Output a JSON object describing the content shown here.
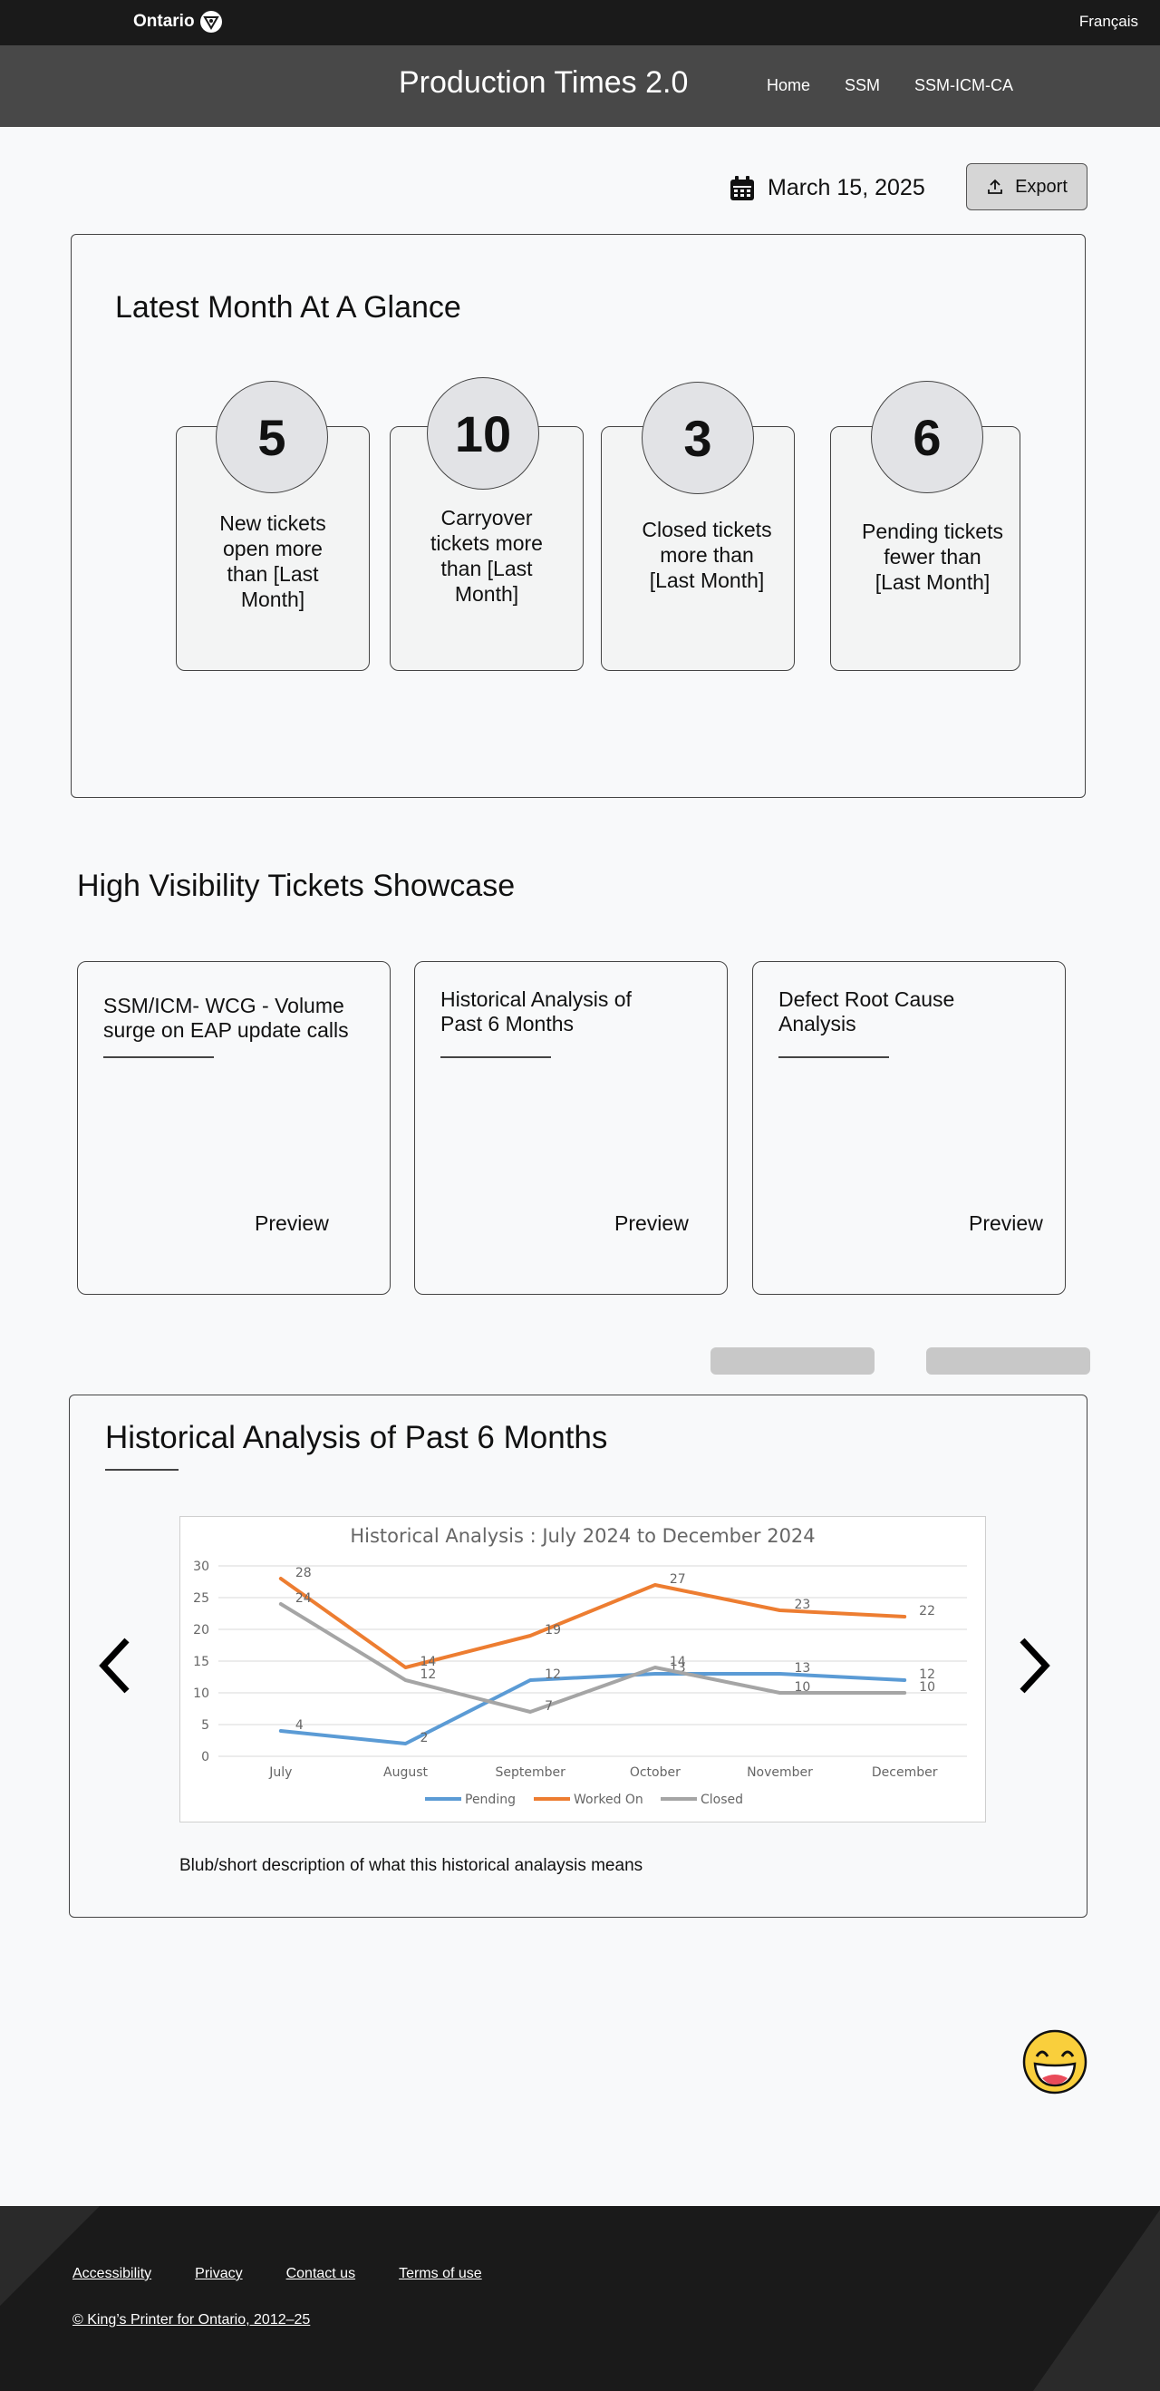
{
  "topbar": {
    "brand": "Ontario",
    "language": "Français"
  },
  "header": {
    "title": "Production Times 2.0",
    "nav": [
      "Home",
      "SSM",
      "SSM-ICM-CA"
    ]
  },
  "toolbar": {
    "date": "March 15, 2025",
    "export_label": "Export"
  },
  "glance": {
    "title": "Latest Month At A Glance",
    "stats": [
      {
        "value": "5",
        "lines": [
          "New tickets",
          "open more",
          "than  [Last",
          "Month]"
        ]
      },
      {
        "value": "10",
        "lines": [
          "Carryover",
          "tickets more",
          "than  [Last",
          "Month]"
        ]
      },
      {
        "value": "3",
        "lines": [
          "Closed tickets",
          "more than",
          "[Last Month]"
        ]
      },
      {
        "value": "6",
        "lines": [
          "Pending tickets",
          "fewer than",
          "[Last Month]"
        ]
      }
    ]
  },
  "showcase": {
    "title": "High Visibility Tickets Showcase",
    "cards": [
      {
        "lines": [
          "SSM/ICM- WCG - Volume",
          "surge on EAP update calls"
        ],
        "preview": "Preview"
      },
      {
        "lines": [
          "Historical Analysis of",
          "Past 6 Months"
        ],
        "preview": "Preview"
      },
      {
        "lines": [
          "Defect Root Cause",
          "Analysis"
        ],
        "preview": "Preview"
      }
    ]
  },
  "historical": {
    "title": "Historical Analysis of Past 6 Months",
    "description": "Blub/short description of what this historical analaysis means"
  },
  "chart_data": {
    "type": "line",
    "title": "Historical Analysis : July 2024 to December 2024",
    "categories": [
      "July",
      "August",
      "September",
      "October",
      "November",
      "December"
    ],
    "ylim": [
      0,
      30
    ],
    "yticks": [
      0,
      5,
      10,
      15,
      20,
      25,
      30
    ],
    "grid": true,
    "legend": "bottom",
    "series": [
      {
        "name": "Pending",
        "color": "#5b9bd5",
        "values": [
          4,
          2,
          12,
          13,
          13,
          12
        ],
        "labels": [
          "4",
          "2",
          "12",
          "13",
          "13",
          "12"
        ]
      },
      {
        "name": "Worked On",
        "color": "#ed7d31",
        "values": [
          28,
          14,
          19,
          27,
          23,
          22
        ],
        "labels": [
          "28",
          "14",
          "19",
          "27",
          "23",
          "22"
        ]
      },
      {
        "name": "Closed",
        "color": "#a5a5a5",
        "values": [
          24,
          12,
          7,
          14,
          10,
          10
        ],
        "labels": [
          "24",
          "12",
          "7",
          "14",
          "10",
          "10"
        ]
      }
    ]
  },
  "footer": {
    "links": [
      "Accessibility",
      "Privacy",
      "Contact us",
      "Terms of use"
    ],
    "copyright": "© King’s Printer for Ontario, 2012–25"
  }
}
